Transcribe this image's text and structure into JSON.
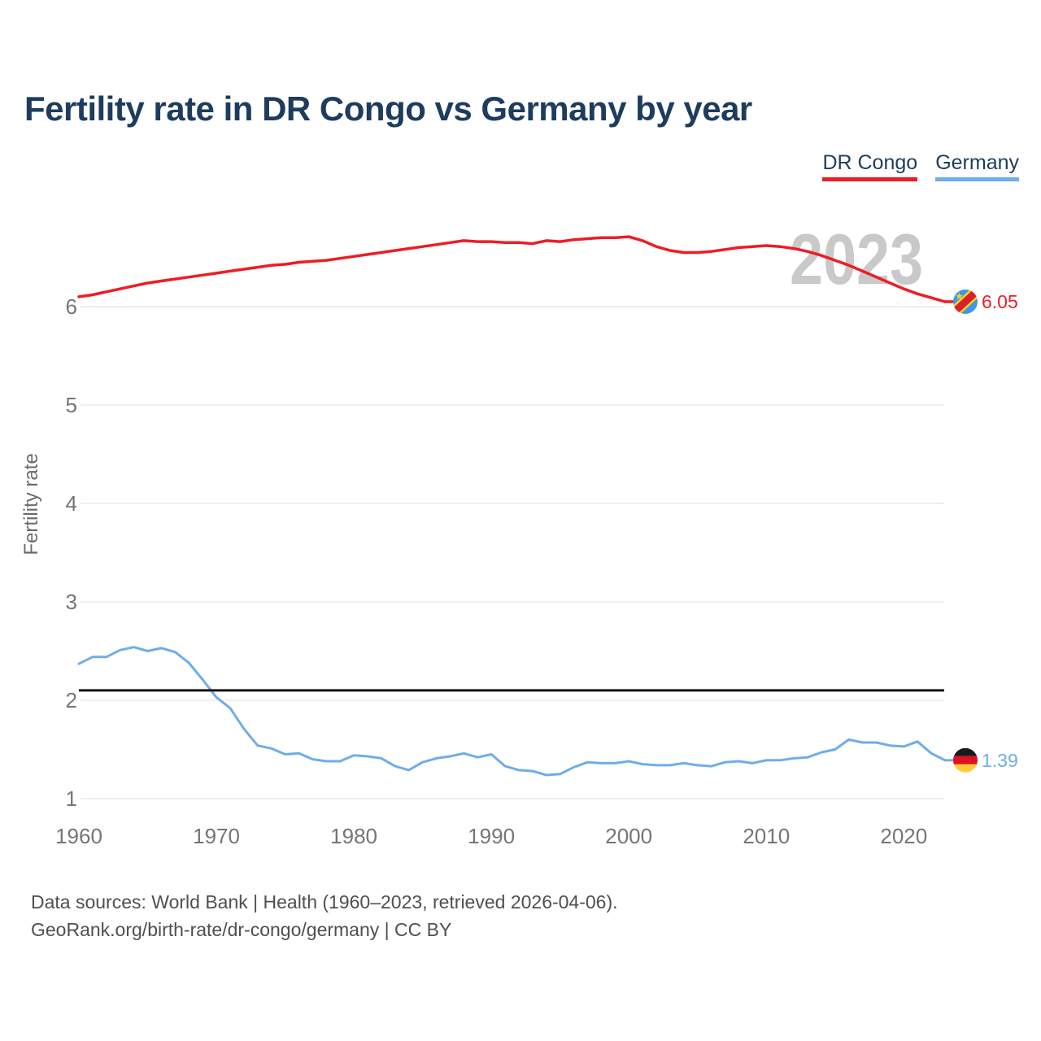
{
  "header": {
    "title": "Fertility rate in DR Congo vs Germany by year",
    "title_color": "#1d3c5e"
  },
  "watermark": {
    "text": "2023",
    "color": "#c9c9c9"
  },
  "footer": {
    "line1": "Data sources: World Bank | Health (1960–2023, retrieved 2026-04-06).",
    "line2": "GeoRank.org/birth-rate/dr-congo/germany | CC BY"
  },
  "chart_data": {
    "type": "line",
    "title": "Fertility rate in DR Congo vs Germany by year",
    "xlabel": "",
    "ylabel": "Fertility rate",
    "x_ticks": [
      1960,
      1970,
      1980,
      1990,
      2000,
      2010,
      2020
    ],
    "y_ticks": [
      1,
      2,
      3,
      4,
      5,
      6
    ],
    "xlim": [
      1960,
      2023
    ],
    "ylim": [
      1,
      7
    ],
    "grid": "horizontal-only",
    "grid_color": "#ebebeb",
    "tick_color": "#757575",
    "axis_label_color": "#6b6b6b",
    "legend_position": "top-right",
    "reference_line": {
      "value": 2.1,
      "color": "#111111"
    },
    "years": [
      1960,
      1961,
      1962,
      1963,
      1964,
      1965,
      1966,
      1967,
      1968,
      1969,
      1970,
      1971,
      1972,
      1973,
      1974,
      1975,
      1976,
      1977,
      1978,
      1979,
      1980,
      1981,
      1982,
      1983,
      1984,
      1985,
      1986,
      1987,
      1988,
      1989,
      1990,
      1991,
      1992,
      1993,
      1994,
      1995,
      1996,
      1997,
      1998,
      1999,
      2000,
      2001,
      2002,
      2003,
      2004,
      2005,
      2006,
      2007,
      2008,
      2009,
      2010,
      2011,
      2012,
      2013,
      2014,
      2015,
      2016,
      2017,
      2018,
      2019,
      2020,
      2021,
      2022,
      2023
    ],
    "series": [
      {
        "name": "DR Congo",
        "color": "#ee1c25",
        "line_width": 3.5,
        "end_label": "6.05",
        "flag": "dr-congo-flag",
        "flag_colors": {
          "field": "#3e97e8",
          "band_edge": "#f7d618",
          "band": "#dc1f2e",
          "star": "#f7d618"
        },
        "values": [
          6.1,
          6.12,
          6.15,
          6.18,
          6.21,
          6.24,
          6.26,
          6.28,
          6.3,
          6.32,
          6.34,
          6.36,
          6.38,
          6.4,
          6.42,
          6.43,
          6.45,
          6.46,
          6.47,
          6.49,
          6.51,
          6.53,
          6.55,
          6.57,
          6.59,
          6.61,
          6.63,
          6.65,
          6.67,
          6.66,
          6.66,
          6.65,
          6.65,
          6.64,
          6.67,
          6.66,
          6.68,
          6.69,
          6.7,
          6.7,
          6.71,
          6.67,
          6.61,
          6.57,
          6.55,
          6.55,
          6.56,
          6.58,
          6.6,
          6.61,
          6.62,
          6.61,
          6.59,
          6.56,
          6.52,
          6.47,
          6.42,
          6.36,
          6.3,
          6.24,
          6.18,
          6.13,
          6.09,
          6.05
        ]
      },
      {
        "name": "Germany",
        "color": "#70ade8",
        "line_width": 3,
        "end_label": "1.39",
        "flag": "germany-flag",
        "flag_colors": {
          "top": "#1a1a1a",
          "middle": "#dd1122",
          "bottom": "#ffcc33"
        },
        "values": [
          2.37,
          2.44,
          2.44,
          2.51,
          2.54,
          2.5,
          2.53,
          2.49,
          2.38,
          2.21,
          2.03,
          1.92,
          1.71,
          1.54,
          1.51,
          1.45,
          1.46,
          1.4,
          1.38,
          1.38,
          1.44,
          1.43,
          1.41,
          1.33,
          1.29,
          1.37,
          1.41,
          1.43,
          1.46,
          1.42,
          1.45,
          1.33,
          1.29,
          1.28,
          1.24,
          1.25,
          1.32,
          1.37,
          1.36,
          1.36,
          1.38,
          1.35,
          1.34,
          1.34,
          1.36,
          1.34,
          1.33,
          1.37,
          1.38,
          1.36,
          1.39,
          1.39,
          1.41,
          1.42,
          1.47,
          1.5,
          1.6,
          1.57,
          1.57,
          1.54,
          1.53,
          1.58,
          1.46,
          1.39
        ]
      }
    ],
    "watermark": {
      "text": "2023"
    }
  }
}
